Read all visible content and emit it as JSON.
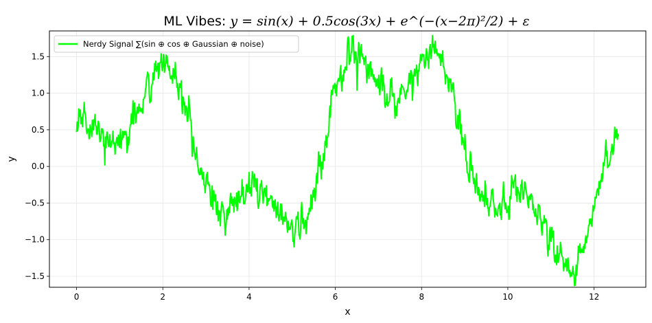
{
  "chart_data": {
    "type": "line",
    "title_prefix": "ML Vibes: ",
    "title_formula": "y = sin(x) + 0.5cos(3x) + e^(−(x−2π)²/2) + ε",
    "xlabel": "x",
    "ylabel": "y",
    "xlim": [
      -0.63,
      13.2
    ],
    "ylim": [
      -1.65,
      1.85
    ],
    "xticks": [
      0,
      2,
      4,
      6,
      8,
      10,
      12
    ],
    "yticks": [
      -1.5,
      -1.0,
      -0.5,
      0.0,
      0.5,
      1.0,
      1.5
    ],
    "xtick_labels": [
      "0",
      "2",
      "4",
      "6",
      "8",
      "10",
      "12"
    ],
    "ytick_labels": [
      "−1.5",
      "−1.0",
      "−0.5",
      "0.0",
      "0.5",
      "1.0",
      "1.5"
    ],
    "grid": true,
    "legend_position": "upper-left",
    "series": [
      {
        "name": "Nerdy Signal ∑(sin ⊕ cos ⊕ Gaussian ⊕ noise)",
        "color": "#00ff00",
        "x_start": 0,
        "x_end": 12.566,
        "function": "sin(x) + 0.5*cos(3x) + exp(-(x-2π)^2/2) + noise",
        "noise_std": 0.1
      }
    ]
  }
}
